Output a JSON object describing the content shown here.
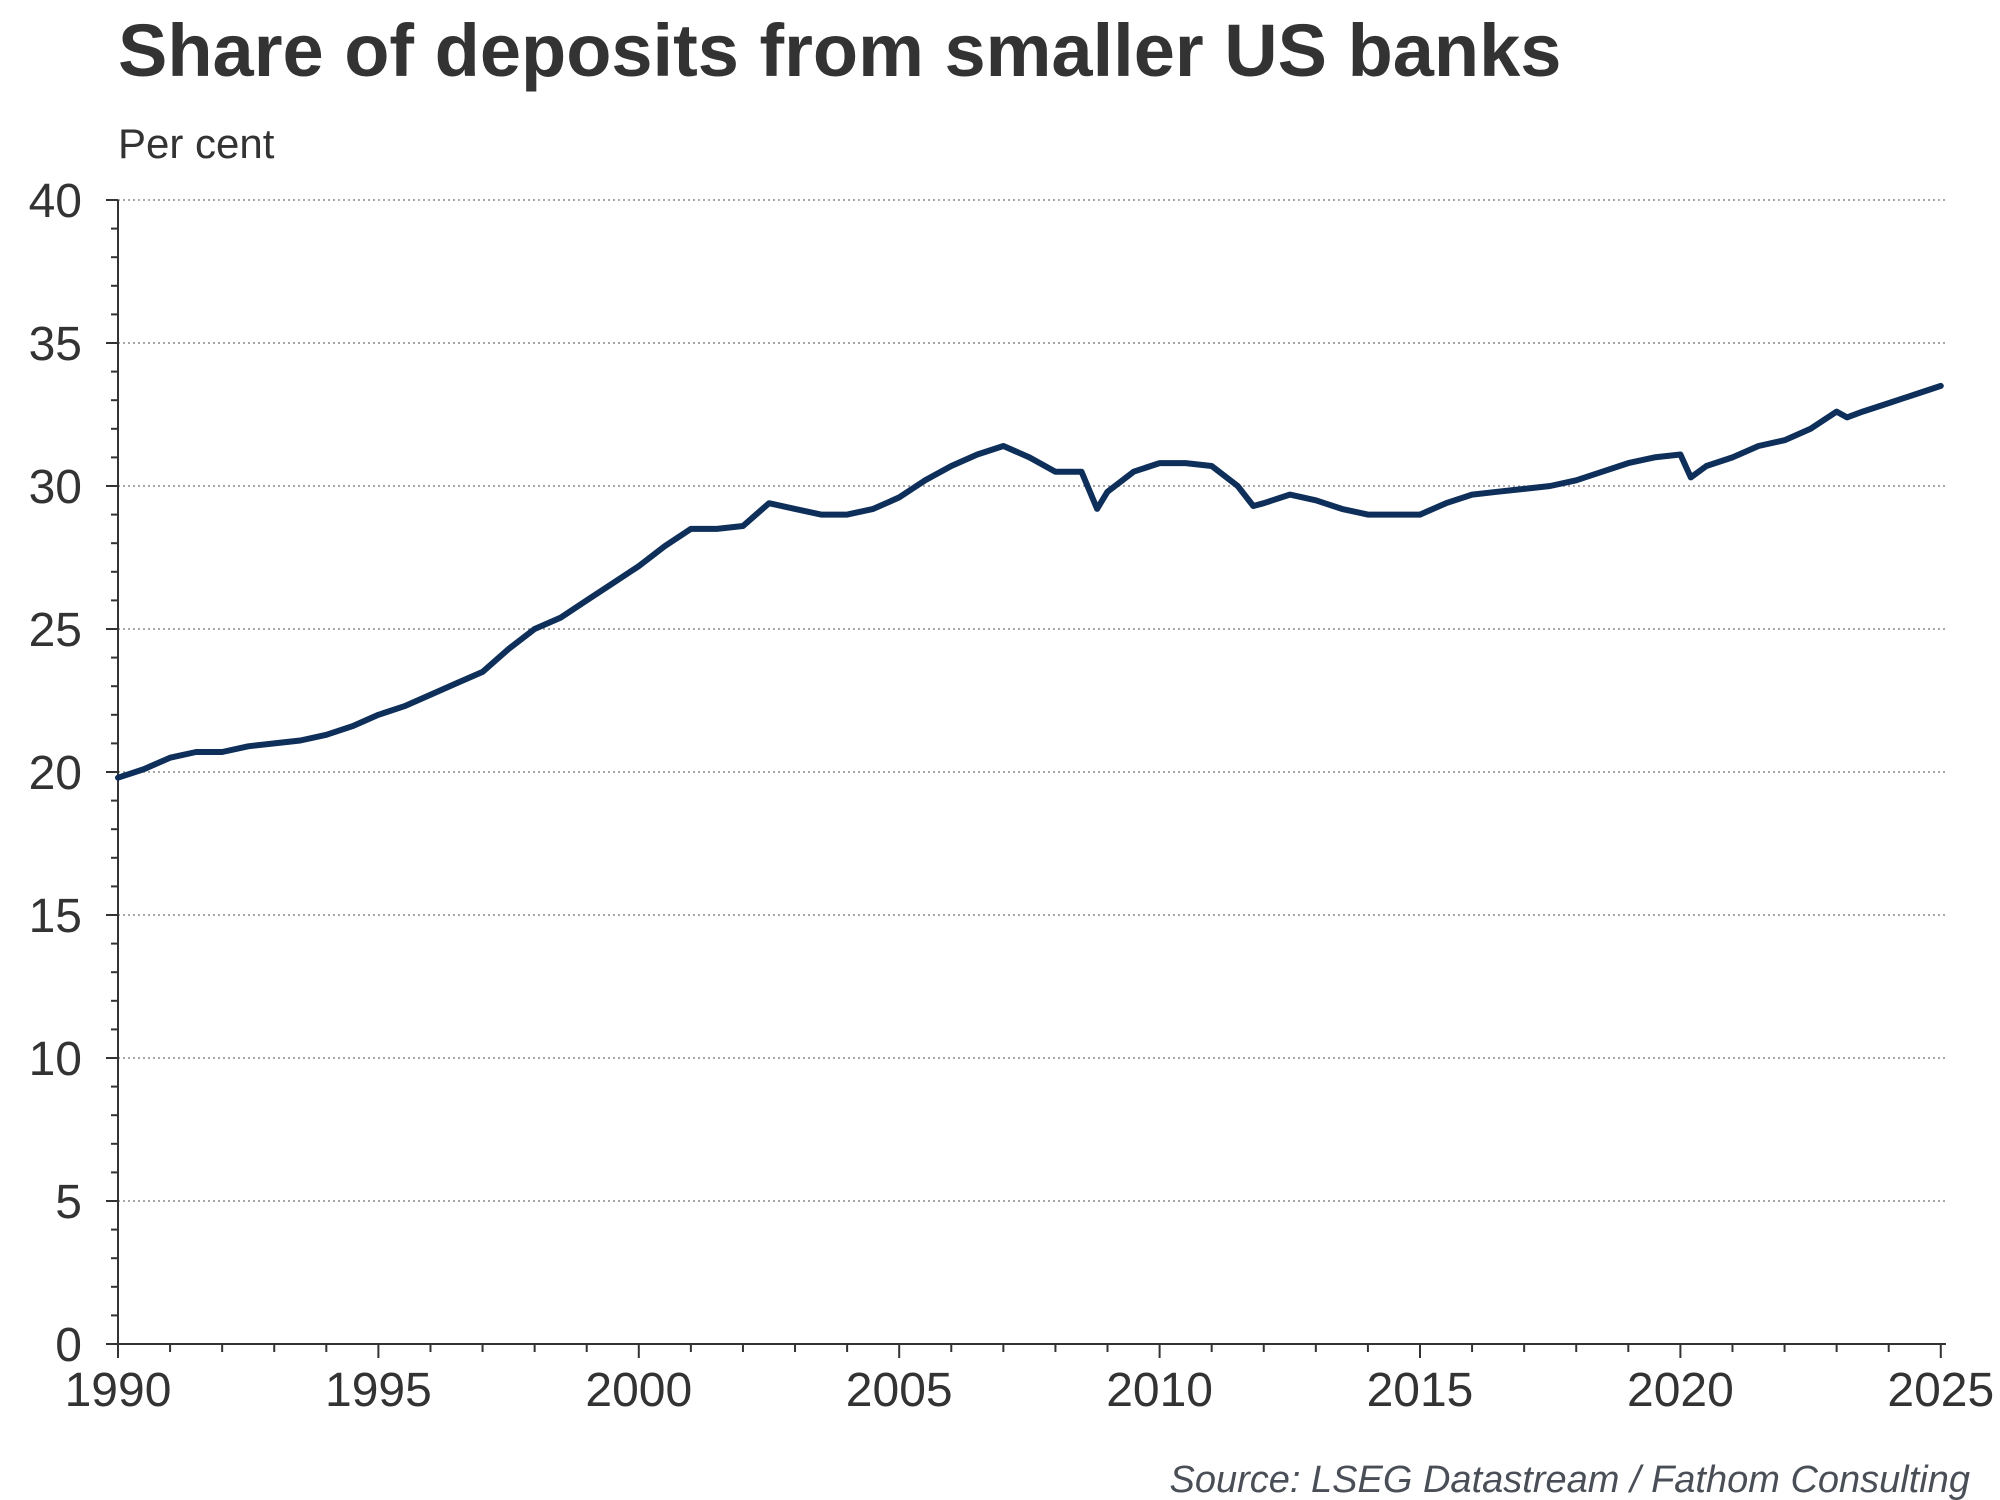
{
  "chart_data": {
    "type": "line",
    "title": "Share of deposits from smaller US banks",
    "ylabel": "Per cent",
    "xlabel": "",
    "xlim": [
      1990,
      2025.1
    ],
    "ylim": [
      0,
      40
    ],
    "x_ticks": [
      1990,
      1995,
      2000,
      2005,
      2010,
      2015,
      2020,
      2025
    ],
    "x_tick_labels": [
      "1990",
      "1995",
      "2000",
      "2005",
      "2010",
      "2015",
      "2020",
      "2025"
    ],
    "y_ticks": [
      0,
      5,
      10,
      15,
      20,
      25,
      30,
      35,
      40
    ],
    "y_tick_labels": [
      "0",
      "5",
      "10",
      "15",
      "20",
      "25",
      "30",
      "35",
      "40"
    ],
    "grid": true,
    "legend": "none",
    "source": "Source: LSEG Datastream / Fathom Consulting",
    "series": [
      {
        "color": "#0d2f5a",
        "x": [
          1990.0,
          1990.5,
          1991.0,
          1991.5,
          1992.0,
          1992.5,
          1993.0,
          1993.5,
          1994.0,
          1994.5,
          1995.0,
          1995.5,
          1996.0,
          1996.5,
          1997.0,
          1997.5,
          1998.0,
          1998.5,
          1999.0,
          1999.5,
          2000.0,
          2000.5,
          2001.0,
          2001.5,
          2002.0,
          2002.5,
          2003.0,
          2003.5,
          2004.0,
          2004.5,
          2005.0,
          2005.5,
          2006.0,
          2006.5,
          2007.0,
          2007.5,
          2008.0,
          2008.5,
          2008.8,
          2009.0,
          2009.5,
          2010.0,
          2010.5,
          2011.0,
          2011.5,
          2011.8,
          2012.0,
          2012.5,
          2013.0,
          2013.5,
          2014.0,
          2014.5,
          2015.0,
          2015.5,
          2016.0,
          2016.5,
          2017.0,
          2017.5,
          2018.0,
          2018.5,
          2019.0,
          2019.5,
          2020.0,
          2020.2,
          2020.5,
          2021.0,
          2021.5,
          2022.0,
          2022.5,
          2023.0,
          2023.2,
          2023.5,
          2024.0,
          2024.5,
          2025.0
        ],
        "values": [
          19.8,
          20.1,
          20.5,
          20.7,
          20.7,
          20.9,
          21.0,
          21.1,
          21.3,
          21.6,
          22.0,
          22.3,
          22.7,
          23.1,
          23.5,
          24.3,
          25.0,
          25.4,
          26.0,
          26.6,
          27.2,
          27.9,
          28.5,
          28.5,
          28.6,
          29.4,
          29.2,
          29.0,
          29.0,
          29.2,
          29.6,
          30.2,
          30.7,
          31.1,
          31.4,
          31.0,
          30.5,
          30.5,
          29.2,
          29.8,
          30.5,
          30.8,
          30.8,
          30.7,
          30.0,
          29.3,
          29.4,
          29.7,
          29.5,
          29.2,
          29.0,
          29.0,
          29.0,
          29.4,
          29.7,
          29.8,
          29.9,
          30.0,
          30.2,
          30.5,
          30.8,
          31.0,
          31.1,
          30.3,
          30.7,
          31.0,
          31.4,
          31.6,
          32.0,
          32.6,
          32.4,
          32.6,
          32.9,
          33.2,
          33.5
        ]
      }
    ]
  }
}
